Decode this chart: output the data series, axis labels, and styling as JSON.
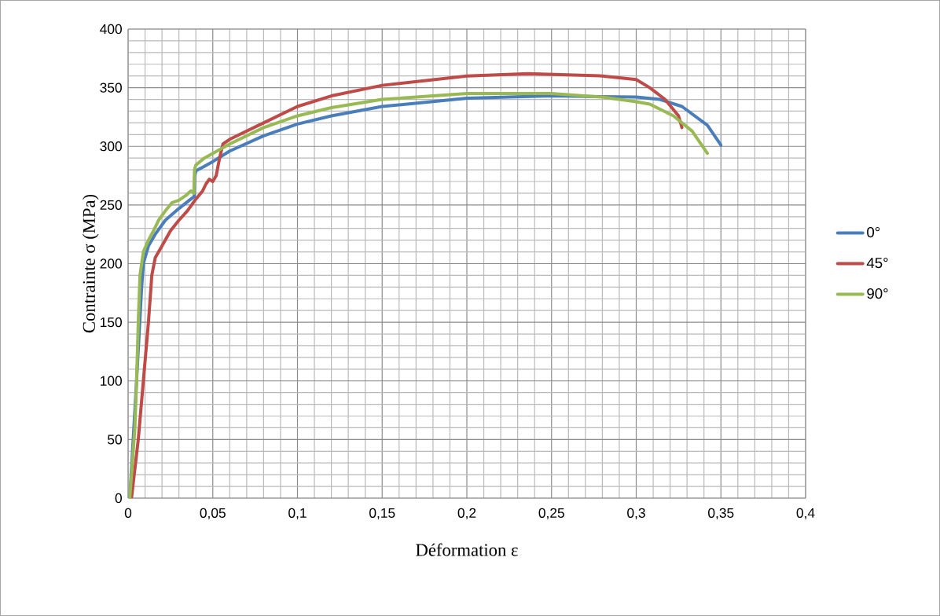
{
  "chart_data": {
    "type": "line",
    "xlabel": "Déformation ε",
    "ylabel": "Contrainte σ  (MPa)",
    "xlim": [
      0,
      0.4
    ],
    "ylim": [
      0,
      400
    ],
    "xticks": [
      0,
      {
        "value": 0.05,
        "label": "0,05"
      },
      {
        "value": 0.1,
        "label": "0,1"
      },
      {
        "value": 0.15,
        "label": "0,15"
      },
      {
        "value": 0.2,
        "label": "0,2"
      },
      {
        "value": 0.25,
        "label": "0,25"
      },
      {
        "value": 0.3,
        "label": "0,3"
      },
      {
        "value": 0.35,
        "label": "0,35"
      },
      {
        "value": 0.4,
        "label": "0,4"
      }
    ],
    "yticks": [
      0,
      50,
      100,
      150,
      200,
      250,
      300,
      350,
      400
    ],
    "grid": true,
    "legend": "right",
    "line_style": "solid",
    "series": [
      {
        "name": "0°",
        "color": "#4a7ebb",
        "x": [
          0.001,
          0.005,
          0.008,
          0.009,
          0.012,
          0.016,
          0.022,
          0.03,
          0.037,
          0.039,
          0.0394,
          0.04,
          0.045,
          0.05,
          0.06,
          0.08,
          0.1,
          0.12,
          0.15,
          0.2,
          0.25,
          0.3,
          0.314,
          0.327,
          0.342,
          0.35
        ],
        "values": [
          0,
          100,
          180,
          200,
          215,
          225,
          237,
          247,
          255,
          257,
          275,
          279,
          283,
          287,
          296,
          309,
          319,
          326,
          334,
          341,
          343,
          342,
          340,
          334,
          318,
          301
        ]
      },
      {
        "name": "45°",
        "color": "#be4b48",
        "x": [
          0.002,
          0.006,
          0.009,
          0.012,
          0.014,
          0.016,
          0.02,
          0.025,
          0.03,
          0.035,
          0.04,
          0.044,
          0.046,
          0.048,
          0.05,
          0.052,
          0.054,
          0.056,
          0.06,
          0.08,
          0.1,
          0.12,
          0.15,
          0.2,
          0.236,
          0.28,
          0.3,
          0.308,
          0.317,
          0.325,
          0.327
        ],
        "values": [
          0,
          50,
          100,
          150,
          190,
          205,
          215,
          228,
          237,
          245,
          255,
          262,
          268,
          272,
          270,
          275,
          290,
          302,
          306,
          320,
          334,
          343,
          352,
          360,
          362,
          360,
          357,
          350,
          340,
          326,
          316
        ]
      },
      {
        "name": "90°",
        "color": "#98b954",
        "x": [
          0.001,
          0.004,
          0.005,
          0.006,
          0.007,
          0.009,
          0.012,
          0.015,
          0.018,
          0.022,
          0.026,
          0.03,
          0.034,
          0.037,
          0.0388,
          0.0392,
          0.04,
          0.045,
          0.05,
          0.06,
          0.08,
          0.1,
          0.12,
          0.15,
          0.2,
          0.25,
          0.28,
          0.3,
          0.308,
          0.322,
          0.333,
          0.342
        ],
        "values": [
          0,
          60,
          100,
          150,
          190,
          210,
          220,
          228,
          237,
          245,
          252,
          254,
          258,
          262,
          260,
          280,
          284,
          290,
          294,
          302,
          316,
          326,
          333,
          340,
          345,
          345,
          342,
          338,
          336,
          326,
          313,
          294
        ]
      }
    ]
  }
}
